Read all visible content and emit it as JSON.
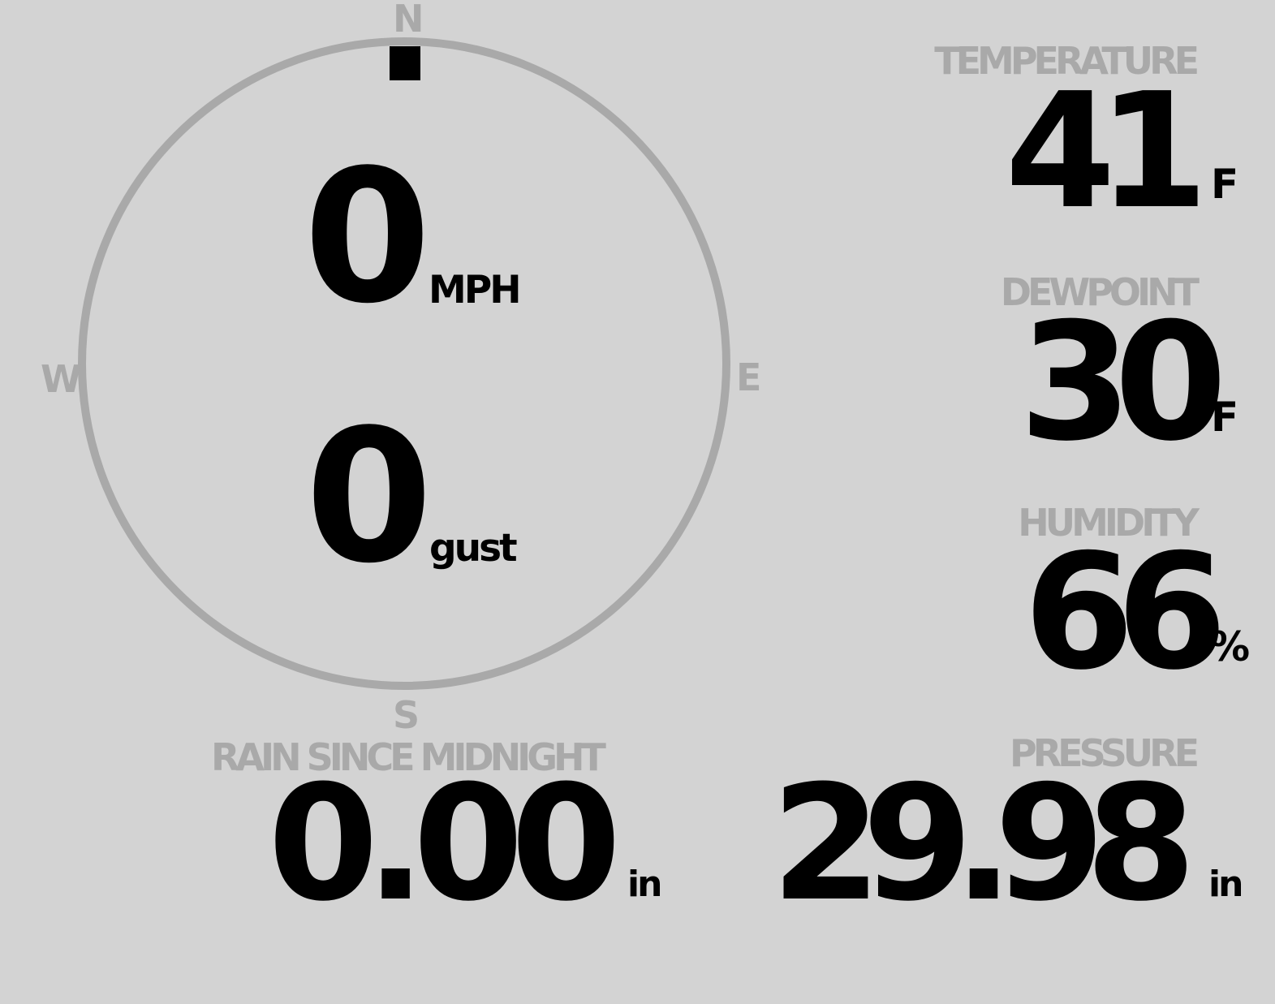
{
  "wind": {
    "speed": "0",
    "speed_unit": "MPH",
    "gust": "0",
    "gust_unit": "gust",
    "direction_degrees": 0,
    "compass": {
      "n": "N",
      "e": "E",
      "s": "S",
      "w": "W"
    },
    "colors": {
      "ring": "#a9a9a9",
      "marker": "#000000"
    }
  },
  "temperature": {
    "label": "TEMPERATURE",
    "value": "41",
    "unit": "F"
  },
  "dewpoint": {
    "label": "DEWPOINT",
    "value": "30",
    "unit": "F"
  },
  "humidity": {
    "label": "HUMIDITY",
    "value": "66",
    "unit": "%"
  },
  "rain": {
    "label": "RAIN SINCE MIDNIGHT",
    "value": "0.00",
    "unit": "in"
  },
  "pressure": {
    "label": "PRESSURE",
    "value": "29.98",
    "unit": "in"
  },
  "colors": {
    "background": "#d3d3d3",
    "label": "#a9a9a9",
    "value": "#000000"
  }
}
